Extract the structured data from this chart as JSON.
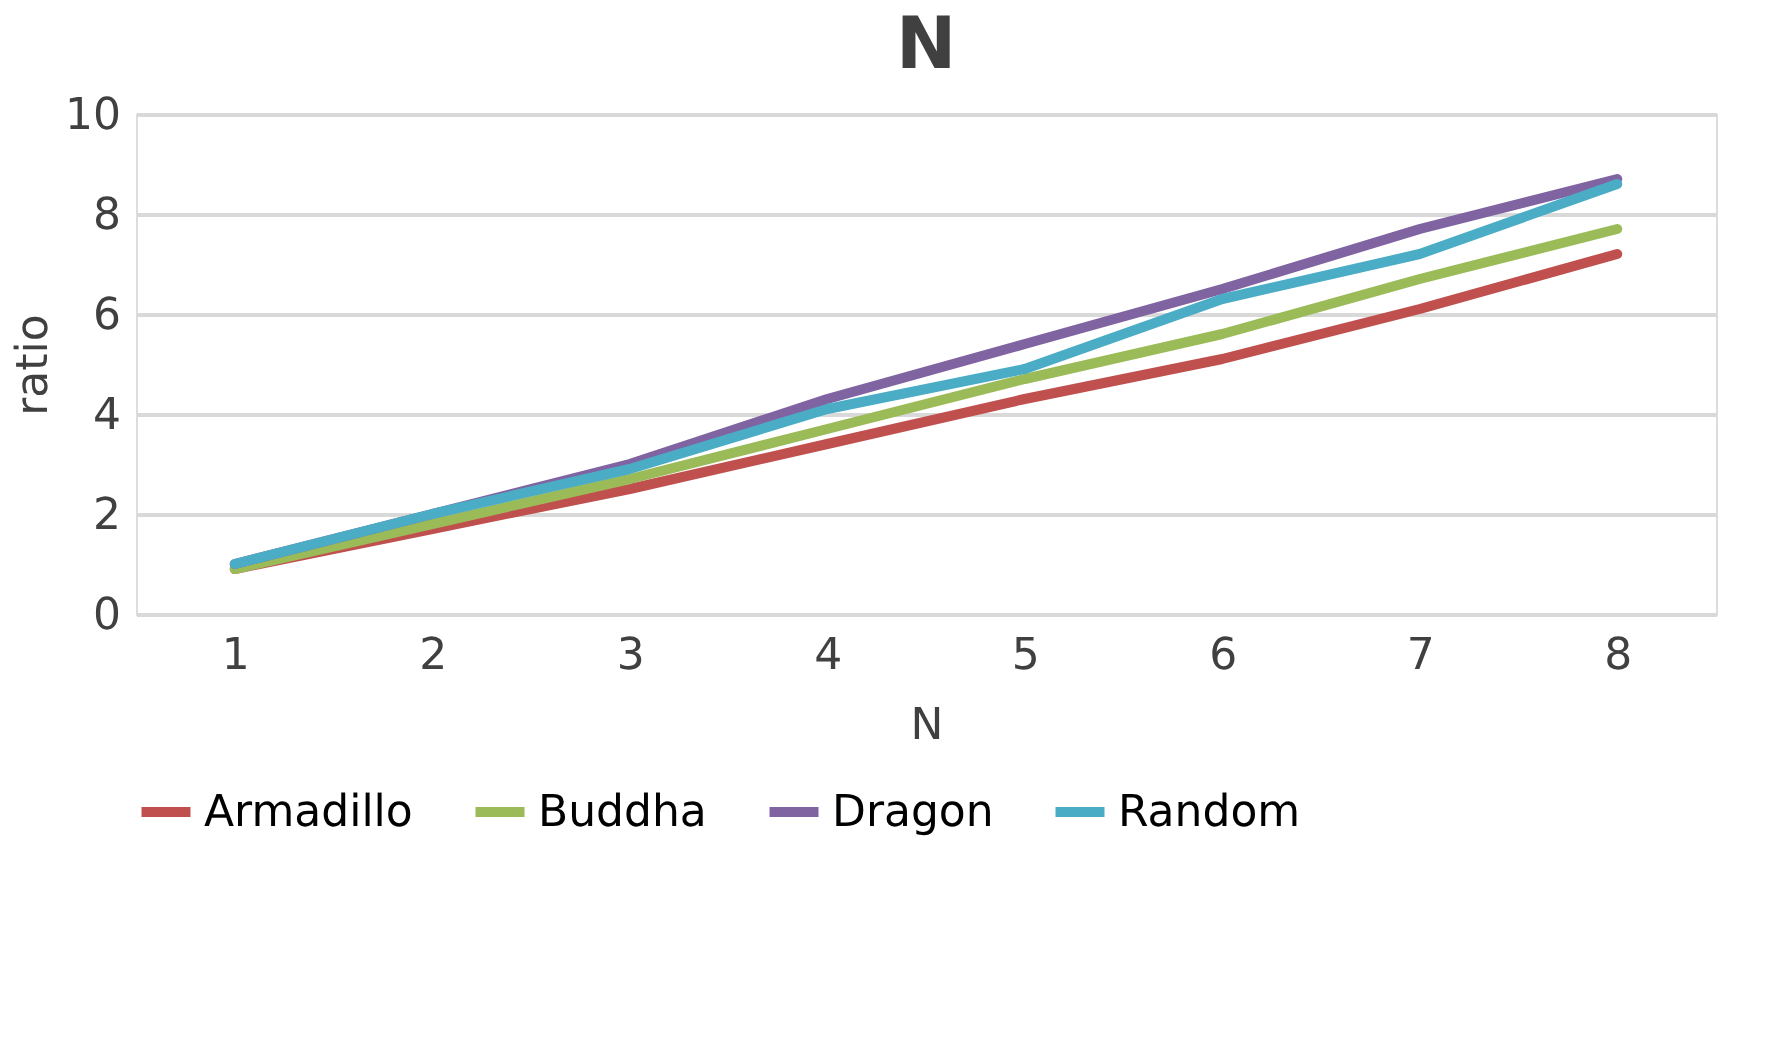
{
  "chart_data": {
    "type": "line",
    "title": "N",
    "xlabel": "N",
    "ylabel": "ratio",
    "categories": [
      "1",
      "2",
      "3",
      "4",
      "5",
      "6",
      "7",
      "8"
    ],
    "series": [
      {
        "name": "Armadillo",
        "color": "#c0504d",
        "values": [
          0.9,
          1.7,
          2.5,
          3.4,
          4.3,
          5.1,
          6.1,
          7.2
        ]
      },
      {
        "name": "Buddha",
        "color": "#9bbb59",
        "values": [
          0.9,
          1.8,
          2.7,
          3.7,
          4.7,
          5.6,
          6.7,
          7.7
        ]
      },
      {
        "name": "Dragon",
        "color": "#8064a2",
        "values": [
          1.0,
          2.0,
          3.0,
          4.3,
          5.4,
          6.5,
          7.7,
          8.7
        ]
      },
      {
        "name": "Random",
        "color": "#4bacc6",
        "values": [
          1.0,
          2.0,
          2.9,
          4.1,
          4.9,
          6.3,
          7.2,
          8.6
        ]
      }
    ],
    "ylim": [
      0,
      10
    ],
    "yticks": [
      0,
      2,
      4,
      6,
      8,
      10
    ],
    "grid": "y",
    "legend": "bottom",
    "marker": "none",
    "line_style": "solid"
  }
}
